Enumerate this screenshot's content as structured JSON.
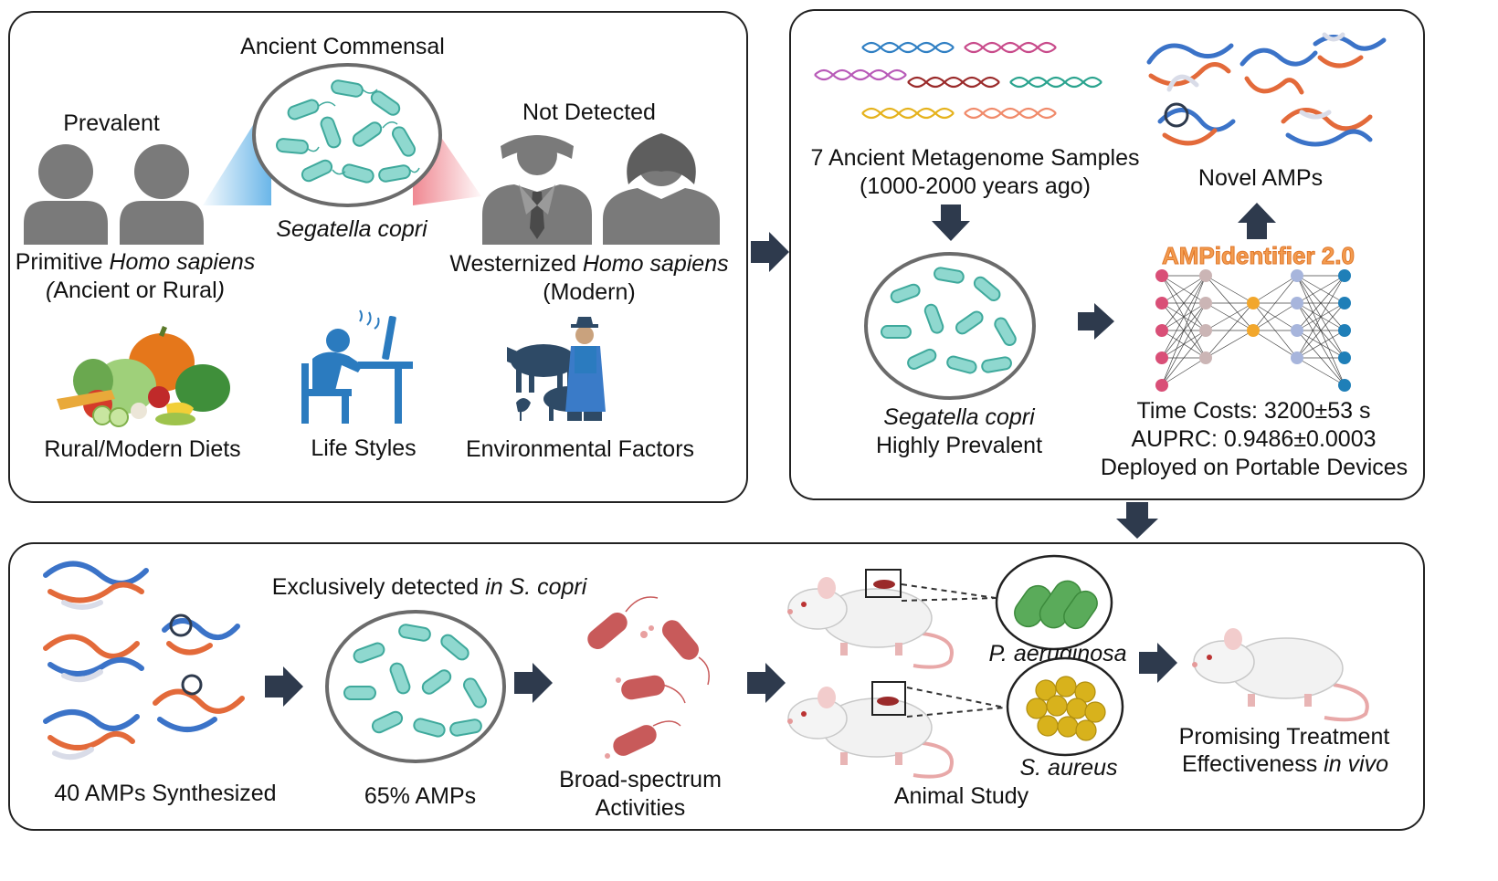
{
  "panel_a": {
    "prevalent": "Prevalent",
    "ancient_commensal": "Ancient Commensal",
    "not_detected": "Not Detected",
    "species": "Segatella copri",
    "primitive_prefix": "Primitive ",
    "primitive_species": "Homo sapiens",
    "primitive_sub_open": "(",
    "primitive_sub_text": "Ancient or Rural",
    "primitive_sub_close": ")",
    "western_prefix": "Westernized ",
    "western_species": "Homo sapiens",
    "western_sub": "(Modern)",
    "factor_diets": "Rural/Modern Diets",
    "factor_lifestyles": "Life Styles",
    "factor_environment": "Environmental Factors"
  },
  "panel_b": {
    "samples_line1": "7 Ancient Metagenome Samples",
    "samples_line2": "(1000-2000 years ago)",
    "species": "Segatella copri",
    "prevalence": "Highly Prevalent",
    "novel_amps": "Novel AMPs",
    "model_name": "AMPidentifier 2.0",
    "time_costs": "Time Costs: 3200±53 s",
    "auprc": "AUPRC: 0.9486±0.0003",
    "deployment": "Deployed on Portable Devices"
  },
  "panel_c": {
    "exclusive_prefix": "Exclusively detected ",
    "exclusive_italic": "in S. copri",
    "synthesized": "40 AMPs Synthesized",
    "percent_amps": "65% AMPs",
    "broad_line1": "Broad-spectrum",
    "broad_line2": "Activities",
    "pathogen1": "P. aeruginosa",
    "pathogen2": "S. aureus",
    "animal_study": "Animal Study",
    "promising_line1": "Promising Treatment",
    "promising_prefix": "Effectiveness ",
    "promising_italic": "in vivo"
  },
  "colors": {
    "arrow": "#2e3a4d",
    "person_gray": "#7a7a7a",
    "bacteria_teal": "#4bbdb1",
    "desk_blue": "#2b7bbf",
    "amp_blue": "#3b73c8",
    "amp_orange": "#e36a3a",
    "red_bacteria": "#c85a5a",
    "green_bacteria": "#5aab5a",
    "yellow_cocci": "#d8b21c",
    "nn_pink": "#d94f77",
    "nn_orange": "#f2a72c",
    "nn_blue": "#1f7fb8"
  }
}
